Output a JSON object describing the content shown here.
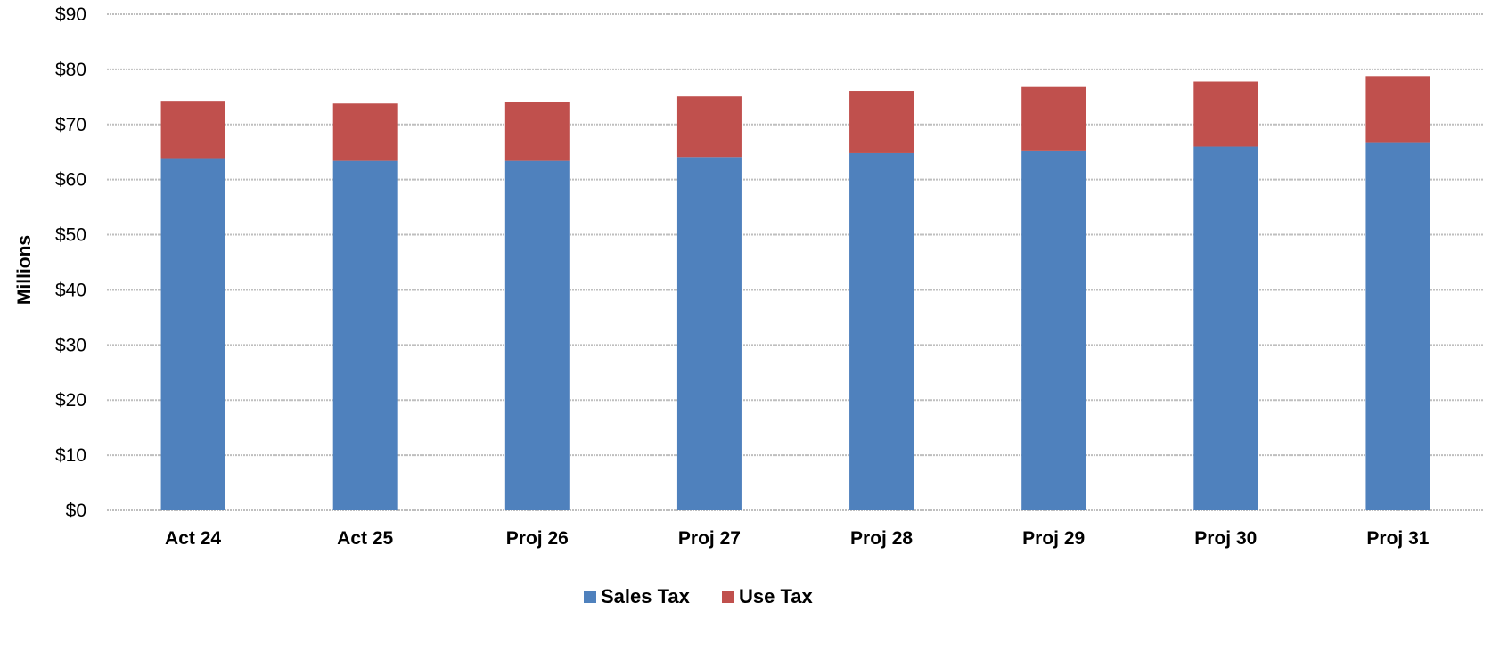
{
  "chart_data": {
    "type": "bar",
    "stacked": true,
    "categories": [
      "Act 24",
      "Act 25",
      "Proj 26",
      "Proj 27",
      "Proj 28",
      "Proj 29",
      "Proj 30",
      "Proj 31"
    ],
    "series": [
      {
        "name": "Sales Tax",
        "color": "#4F81BD",
        "values": [
          63.9,
          63.4,
          63.4,
          64.1,
          64.8,
          65.3,
          66.0,
          66.8
        ]
      },
      {
        "name": "Use Tax",
        "color": "#C0504D",
        "values": [
          10.4,
          10.4,
          10.7,
          11.0,
          11.3,
          11.5,
          11.8,
          12.0
        ]
      }
    ],
    "title": "",
    "xlabel": "",
    "ylabel": "Millions",
    "ylim": [
      0,
      90
    ],
    "yticks": [
      0,
      10,
      20,
      30,
      40,
      50,
      60,
      70,
      80,
      90
    ],
    "ytick_labels": [
      "$0",
      "$10",
      "$20",
      "$30",
      "$40",
      "$50",
      "$60",
      "$70",
      "$80",
      "$90"
    ],
    "grid": true,
    "grid_color": "#BFBFBF",
    "legend_position": "bottom"
  }
}
